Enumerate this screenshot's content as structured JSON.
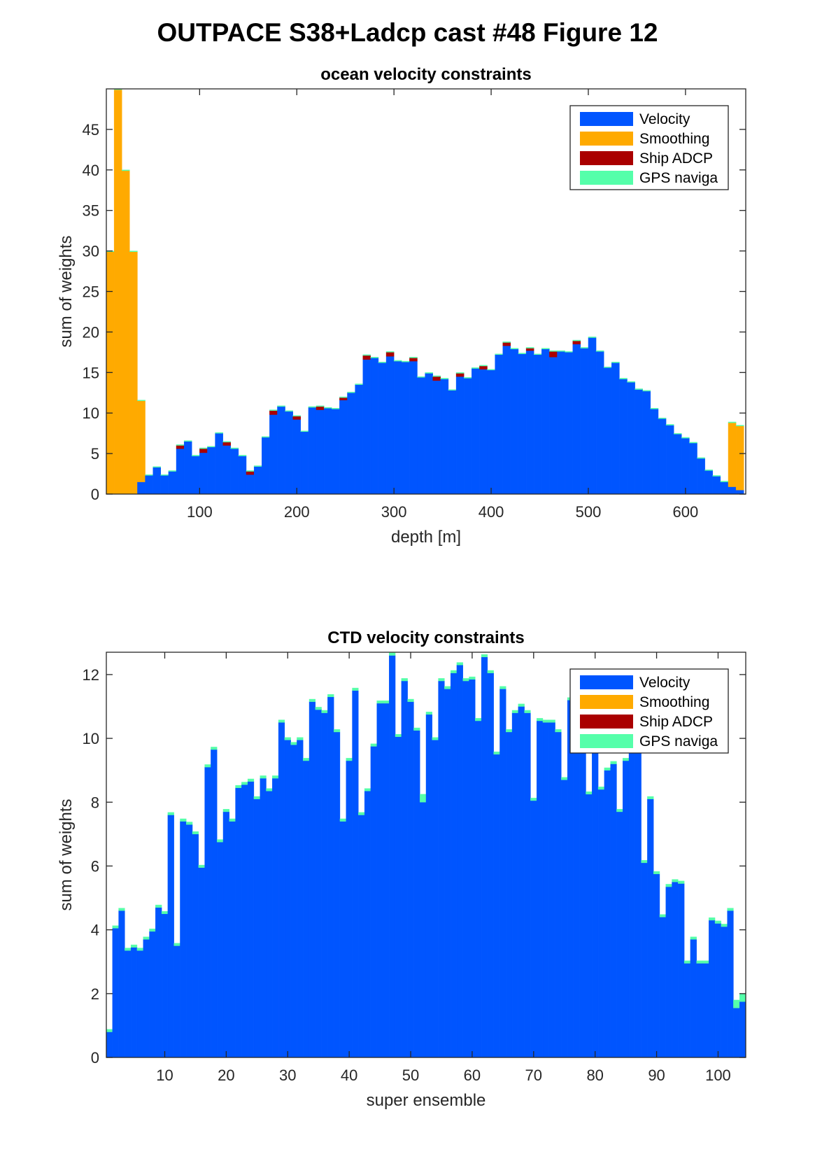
{
  "figure": {
    "title": "OUTPACE S38+Ladcp cast #48  Figure 12"
  },
  "colors": {
    "velocity": "#0055ff",
    "smoothing": "#ffaa00",
    "ship_adcp": "#aa0000",
    "gps": "#55ffaa"
  },
  "chart_data": [
    {
      "type": "bar",
      "stacked": true,
      "title": "ocean velocity constraints",
      "xlabel": "depth [m]",
      "ylabel": "sum of weights",
      "xlim": [
        4,
        662
      ],
      "ylim": [
        0,
        50
      ],
      "xticks": [
        100,
        200,
        300,
        400,
        500,
        600
      ],
      "yticks": [
        0,
        5,
        10,
        15,
        20,
        25,
        30,
        35,
        40,
        45
      ],
      "bar_width": 8,
      "legend": {
        "position": "top-right",
        "entries": [
          "Velocity",
          "Smoothing",
          "Ship ADCP",
          "GPS naviga"
        ]
      },
      "x": [
        8,
        16,
        24,
        32,
        40,
        48,
        56,
        64,
        72,
        80,
        88,
        96,
        104,
        112,
        120,
        128,
        136,
        144,
        152,
        160,
        168,
        176,
        184,
        192,
        200,
        208,
        216,
        224,
        232,
        240,
        248,
        256,
        264,
        272,
        280,
        288,
        296,
        304,
        312,
        320,
        328,
        336,
        344,
        352,
        360,
        368,
        376,
        384,
        392,
        400,
        408,
        416,
        424,
        432,
        440,
        448,
        456,
        464,
        472,
        480,
        488,
        496,
        504,
        512,
        520,
        528,
        536,
        544,
        552,
        560,
        568,
        576,
        584,
        592,
        600,
        608,
        616,
        624,
        632,
        640,
        648,
        656
      ],
      "series": [
        {
          "name": "Velocity",
          "values": [
            0,
            0,
            0,
            0,
            1.5,
            2.3,
            3.3,
            2.3,
            2.8,
            5.6,
            6.5,
            4.7,
            5.1,
            5.8,
            7.5,
            6.0,
            5.6,
            4.7,
            2.4,
            3.4,
            7.0,
            9.8,
            10.8,
            10.2,
            9.2,
            7.7,
            10.7,
            10.4,
            10.6,
            10.5,
            11.6,
            12.5,
            13.5,
            16.6,
            16.8,
            16.2,
            17.0,
            16.4,
            16.3,
            16.4,
            14.4,
            14.9,
            14.0,
            14.2,
            12.8,
            14.5,
            14.3,
            15.5,
            15.4,
            15.3,
            17.2,
            18.3,
            17.9,
            17.3,
            17.7,
            17.2,
            17.9,
            16.9,
            17.6,
            17.5,
            18.5,
            18.0,
            19.3,
            17.6,
            15.6,
            16.2,
            14.2,
            13.8,
            12.9,
            12.7,
            10.5,
            9.3,
            8.5,
            7.4,
            6.9,
            6.3,
            4.4,
            2.9,
            2.2,
            1.5,
            0.9,
            0.5
          ]
        },
        {
          "name": "Smoothing",
          "values": [
            29.9,
            49.9,
            39.9,
            29.9,
            10.0,
            0,
            0,
            0,
            0,
            0,
            0,
            0,
            0,
            0,
            0,
            0,
            0,
            0,
            0,
            0,
            0,
            0,
            0,
            0,
            0,
            0,
            0,
            0,
            0,
            0,
            0,
            0,
            0,
            0,
            0,
            0,
            0,
            0,
            0,
            0,
            0,
            0,
            0,
            0,
            0,
            0,
            0,
            0,
            0,
            0,
            0,
            0,
            0,
            0,
            0,
            0,
            0,
            0,
            0,
            0,
            0,
            0,
            0,
            0,
            0,
            0,
            0,
            0,
            0,
            0,
            0,
            0,
            0,
            0,
            0,
            0,
            0,
            0,
            0,
            0,
            7.9,
            7.9
          ]
        },
        {
          "name": "Ship ADCP",
          "values": [
            0,
            0,
            0,
            0,
            0,
            0,
            0,
            0,
            0,
            0.4,
            0,
            0,
            0.5,
            0,
            0,
            0.4,
            0,
            0,
            0.4,
            0,
            0,
            0.5,
            0,
            0,
            0.4,
            0,
            0,
            0.4,
            0,
            0,
            0.3,
            0,
            0,
            0.5,
            0,
            0,
            0.5,
            0,
            0,
            0.4,
            0,
            0,
            0.5,
            0,
            0,
            0.4,
            0,
            0,
            0.4,
            0,
            0,
            0.4,
            0,
            0,
            0.3,
            0,
            0,
            0.7,
            0,
            0,
            0.4,
            0,
            0,
            0,
            0,
            0,
            0,
            0,
            0,
            0,
            0,
            0,
            0,
            0,
            0,
            0,
            0,
            0,
            0,
            0,
            0,
            0
          ]
        },
        {
          "name": "GPS naviga",
          "values": [
            0.1,
            0.1,
            0.1,
            0.1,
            0.1,
            0.1,
            0.1,
            0.1,
            0.1,
            0.1,
            0.1,
            0.1,
            0.1,
            0.1,
            0.1,
            0.1,
            0.1,
            0.1,
            0.1,
            0.1,
            0.1,
            0.1,
            0.1,
            0.1,
            0.1,
            0.1,
            0.1,
            0.1,
            0.1,
            0.1,
            0.1,
            0.1,
            0.1,
            0.1,
            0.1,
            0.1,
            0.1,
            0.1,
            0.1,
            0.1,
            0.1,
            0.1,
            0.1,
            0.1,
            0.1,
            0.1,
            0.1,
            0.1,
            0.1,
            0.1,
            0.1,
            0.1,
            0.1,
            0.1,
            0.1,
            0.1,
            0.1,
            0.1,
            0.1,
            0.1,
            0.1,
            0.1,
            0.1,
            0.1,
            0.1,
            0.1,
            0.1,
            0.1,
            0.1,
            0.1,
            0.1,
            0.1,
            0.1,
            0.1,
            0.1,
            0.1,
            0.1,
            0.1,
            0.1,
            0.1,
            0.1,
            0.1
          ]
        }
      ]
    },
    {
      "type": "bar",
      "stacked": true,
      "title": "CTD velocity constraints",
      "xlabel": "super ensemble",
      "ylabel": "sum of weights",
      "xlim": [
        0.5,
        104.5
      ],
      "ylim": [
        0,
        12.7
      ],
      "xticks": [
        10,
        20,
        30,
        40,
        50,
        60,
        70,
        80,
        90,
        100
      ],
      "yticks": [
        0,
        2,
        4,
        6,
        8,
        10,
        12
      ],
      "bar_width": 1,
      "legend": {
        "position": "top-right",
        "entries": [
          "Velocity",
          "Smoothing",
          "Ship ADCP",
          "GPS naviga"
        ]
      },
      "x": [
        1,
        2,
        3,
        4,
        5,
        6,
        7,
        8,
        9,
        10,
        11,
        12,
        13,
        14,
        15,
        16,
        17,
        18,
        19,
        20,
        21,
        22,
        23,
        24,
        25,
        26,
        27,
        28,
        29,
        30,
        31,
        32,
        33,
        34,
        35,
        36,
        37,
        38,
        39,
        40,
        41,
        42,
        43,
        44,
        45,
        46,
        47,
        48,
        49,
        50,
        51,
        52,
        53,
        54,
        55,
        56,
        57,
        58,
        59,
        60,
        61,
        62,
        63,
        64,
        65,
        66,
        67,
        68,
        69,
        70,
        71,
        72,
        73,
        74,
        75,
        76,
        77,
        78,
        79,
        80,
        81,
        82,
        83,
        84,
        85,
        86,
        87,
        88,
        89,
        90,
        91,
        92,
        93,
        94,
        95,
        96,
        97,
        98,
        99,
        100,
        101,
        102,
        103,
        104
      ],
      "series": [
        {
          "name": "Velocity",
          "values": [
            0.8,
            4.05,
            4.6,
            3.35,
            3.45,
            3.35,
            3.7,
            3.95,
            4.7,
            4.5,
            7.6,
            3.5,
            7.4,
            7.3,
            7.0,
            5.95,
            9.1,
            9.65,
            6.75,
            7.7,
            7.4,
            8.45,
            8.55,
            8.65,
            8.1,
            8.75,
            8.35,
            8.75,
            10.5,
            9.95,
            9.8,
            9.95,
            9.3,
            11.15,
            10.9,
            10.8,
            11.3,
            10.2,
            7.4,
            9.3,
            11.5,
            7.6,
            8.35,
            9.75,
            11.1,
            11.1,
            12.6,
            10.05,
            11.8,
            11.15,
            10.25,
            8.0,
            10.75,
            9.95,
            11.8,
            11.55,
            12.05,
            12.3,
            11.8,
            11.85,
            10.55,
            12.55,
            12.05,
            9.5,
            11.55,
            10.2,
            10.8,
            11.0,
            10.8,
            8.05,
            10.55,
            10.5,
            10.5,
            10.2,
            8.7,
            11.2,
            10.8,
            11.4,
            8.25,
            11.0,
            8.4,
            9.0,
            9.2,
            7.7,
            9.3,
            9.7,
            10.3,
            6.1,
            8.1,
            5.75,
            4.4,
            5.35,
            5.5,
            5.45,
            2.95,
            3.7,
            2.95,
            2.95,
            4.3,
            4.2,
            4.1,
            4.6,
            1.55,
            1.75
          ]
        },
        {
          "name": "Smoothing",
          "values": [
            0,
            0,
            0,
            0,
            0,
            0,
            0,
            0,
            0,
            0,
            0,
            0,
            0,
            0,
            0,
            0,
            0,
            0,
            0,
            0,
            0,
            0,
            0,
            0,
            0,
            0,
            0,
            0,
            0,
            0,
            0,
            0,
            0,
            0,
            0,
            0,
            0,
            0,
            0,
            0,
            0,
            0,
            0,
            0,
            0,
            0,
            0,
            0,
            0,
            0,
            0,
            0,
            0,
            0,
            0,
            0,
            0,
            0,
            0,
            0,
            0,
            0,
            0,
            0,
            0,
            0,
            0,
            0,
            0,
            0,
            0,
            0,
            0,
            0,
            0,
            0,
            0,
            0,
            0,
            0,
            0,
            0,
            0,
            0,
            0,
            0,
            0,
            0,
            0,
            0,
            0,
            0,
            0,
            0,
            0,
            0,
            0,
            0,
            0,
            0,
            0,
            0,
            0,
            0
          ]
        },
        {
          "name": "Ship ADCP",
          "values": [
            0,
            0,
            0,
            0,
            0,
            0,
            0,
            0,
            0,
            0,
            0,
            0,
            0,
            0,
            0,
            0,
            0,
            0,
            0,
            0,
            0,
            0,
            0,
            0,
            0,
            0,
            0,
            0,
            0,
            0,
            0,
            0,
            0,
            0,
            0,
            0,
            0,
            0,
            0,
            0,
            0,
            0,
            0,
            0,
            0,
            0,
            0,
            0,
            0,
            0,
            0,
            0,
            0,
            0,
            0,
            0,
            0,
            0,
            0,
            0,
            0,
            0,
            0,
            0,
            0,
            0,
            0,
            0,
            0,
            0,
            0,
            0,
            0,
            0,
            0,
            0,
            0,
            0,
            0,
            0,
            0,
            0,
            0,
            0,
            0,
            0,
            0,
            0,
            0,
            0,
            0,
            0,
            0,
            0,
            0,
            0,
            0,
            0,
            0,
            0,
            0,
            0,
            0,
            0
          ]
        },
        {
          "name": "GPS naviga",
          "values": [
            0.08,
            0.08,
            0.08,
            0.08,
            0.08,
            0.08,
            0.08,
            0.08,
            0.08,
            0.08,
            0.08,
            0.08,
            0.08,
            0.08,
            0.08,
            0.08,
            0.08,
            0.08,
            0.08,
            0.08,
            0.08,
            0.08,
            0.08,
            0.08,
            0.08,
            0.08,
            0.08,
            0.08,
            0.08,
            0.08,
            0.08,
            0.08,
            0.08,
            0.08,
            0.08,
            0.08,
            0.08,
            0.08,
            0.08,
            0.08,
            0.08,
            0.08,
            0.08,
            0.08,
            0.08,
            0.08,
            0.08,
            0.08,
            0.08,
            0.08,
            0.08,
            0.25,
            0.08,
            0.08,
            0.08,
            0.08,
            0.08,
            0.08,
            0.08,
            0.08,
            0.08,
            0.08,
            0.08,
            0.08,
            0.08,
            0.08,
            0.08,
            0.08,
            0.08,
            0.08,
            0.08,
            0.08,
            0.08,
            0.08,
            0.08,
            0.08,
            0.08,
            0.08,
            0.08,
            0.08,
            0.08,
            0.08,
            0.08,
            0.08,
            0.08,
            0.08,
            0.08,
            0.08,
            0.08,
            0.08,
            0.08,
            0.08,
            0.08,
            0.08,
            0.08,
            0.08,
            0.08,
            0.08,
            0.08,
            0.08,
            0.08,
            0.08,
            0.25,
            0.25
          ]
        }
      ]
    }
  ]
}
